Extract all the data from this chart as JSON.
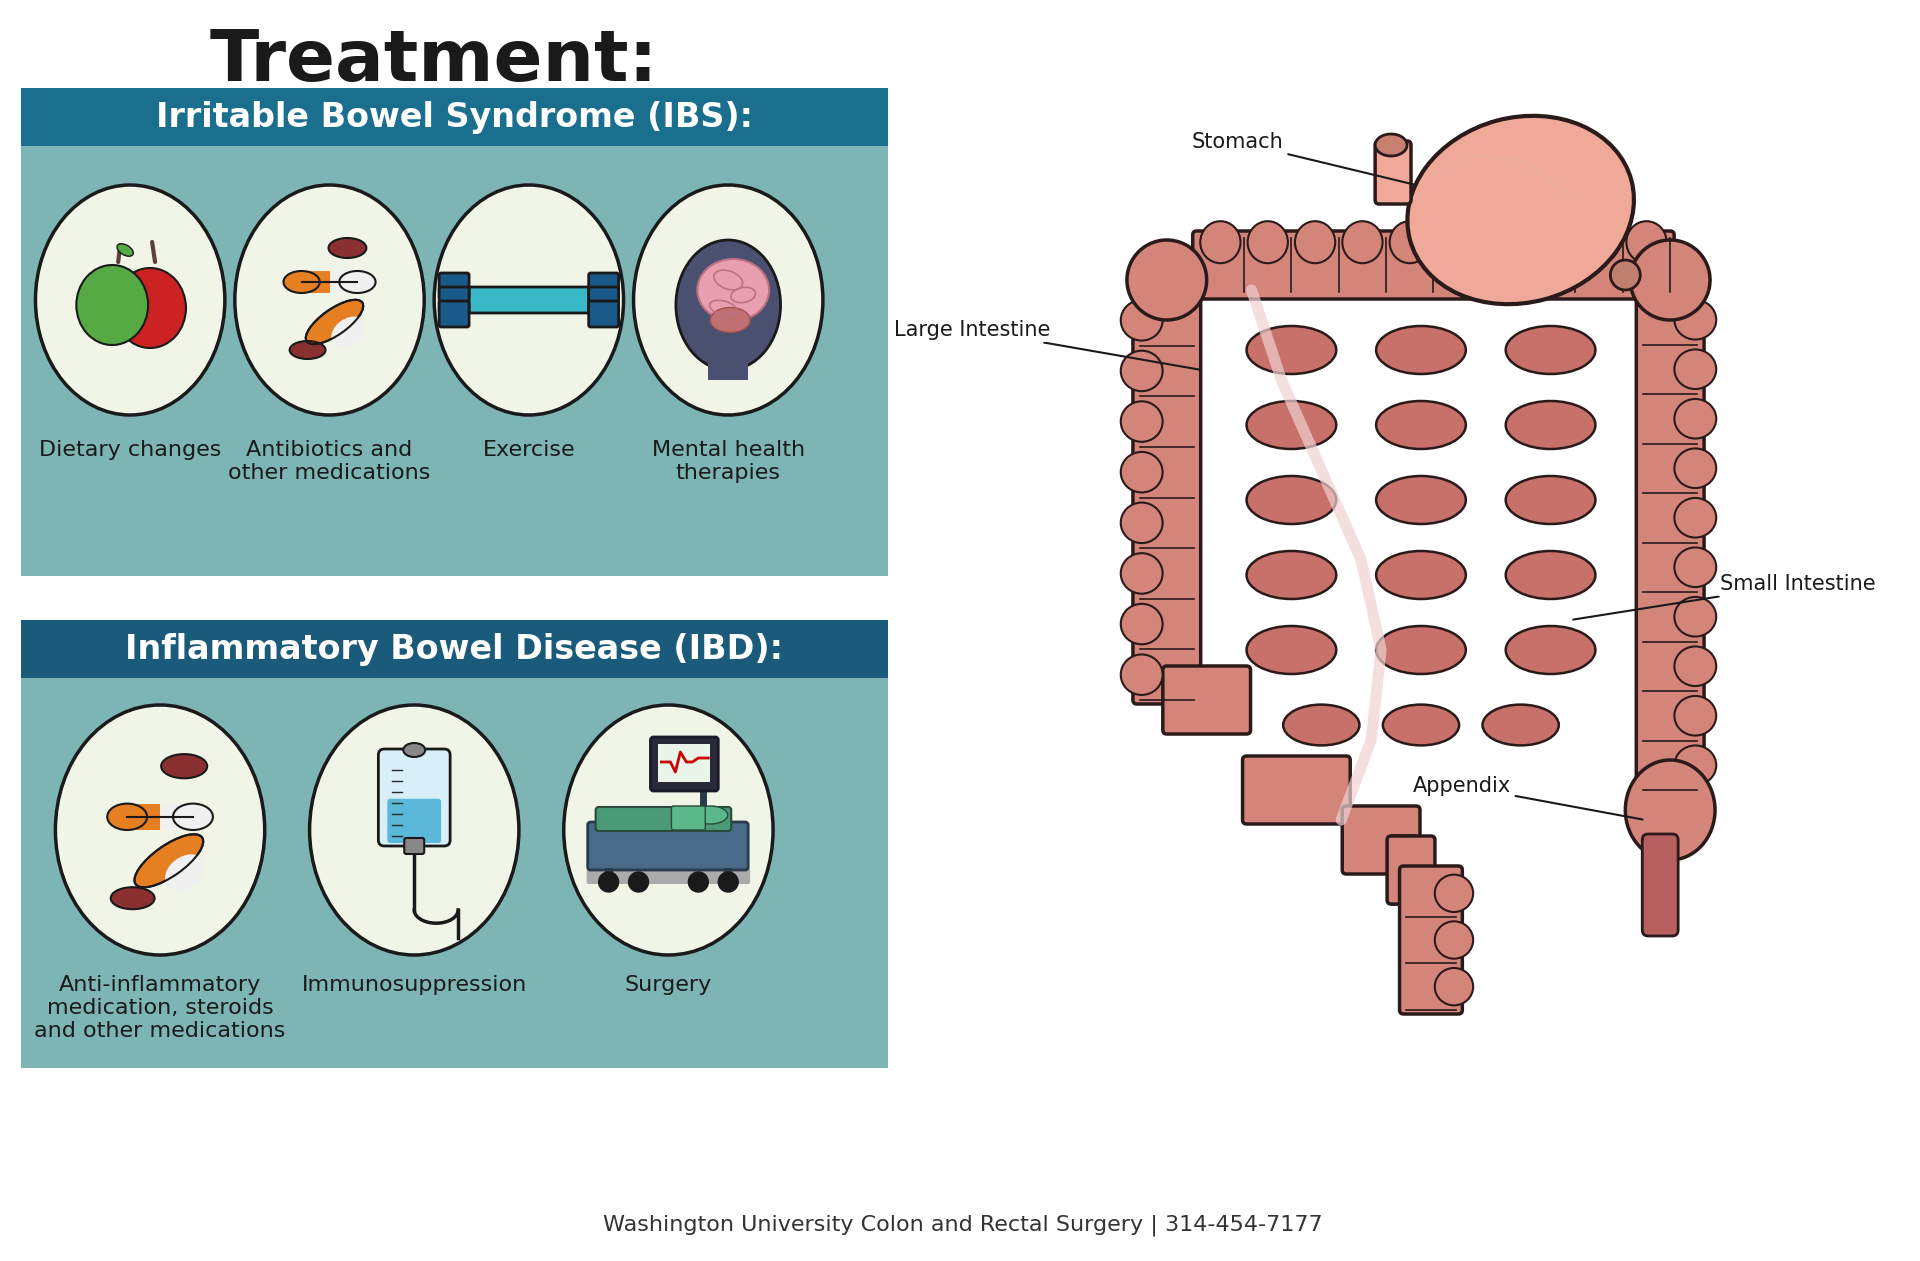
{
  "title": "Treatment:",
  "title_fontsize": 52,
  "title_fontweight": "bold",
  "title_color": "#1a1a1a",
  "bg_color": "#ffffff",
  "ibs_header": "Irritable Bowel Syndrome (IBS):",
  "ibs_header_color": "#ffffff",
  "ibs_header_bg": "#1a6e8e",
  "ibs_section_bg": "#7db5b5",
  "ibd_header": "Inflammatory Bowel Disease (IBD):",
  "ibd_header_color": "#ffffff",
  "ibd_header_bg": "#1a5a7a",
  "ibd_section_bg": "#7db5b5",
  "ibs_items": [
    "Dietary changes",
    "Antibiotics and\nother medications",
    "Exercise",
    "Mental health\ntherapies"
  ],
  "ibd_items": [
    "Anti-inflammatory\nmedication, steroids\nand other medications",
    "Immunosuppression",
    "Surgery"
  ],
  "footer": "Washington University Colon and Rectal Surgery | 314-454-7177",
  "footer_color": "#333333",
  "footer_fontsize": 16,
  "oval_bg": "#f0f5e8",
  "oval_border": "#1a1a1a",
  "item_fontsize": 16,
  "header_fontsize": 24,
  "label_fontsize": 14,
  "colon_color": "#c4706a",
  "colon_outer": "#d4857a",
  "colon_edge": "#2a1a1a",
  "stomach_color": "#f0a898",
  "stomach_edge": "#2a1a1a",
  "small_int_color": "#d4857a",
  "appendix_color": "#b86060"
}
